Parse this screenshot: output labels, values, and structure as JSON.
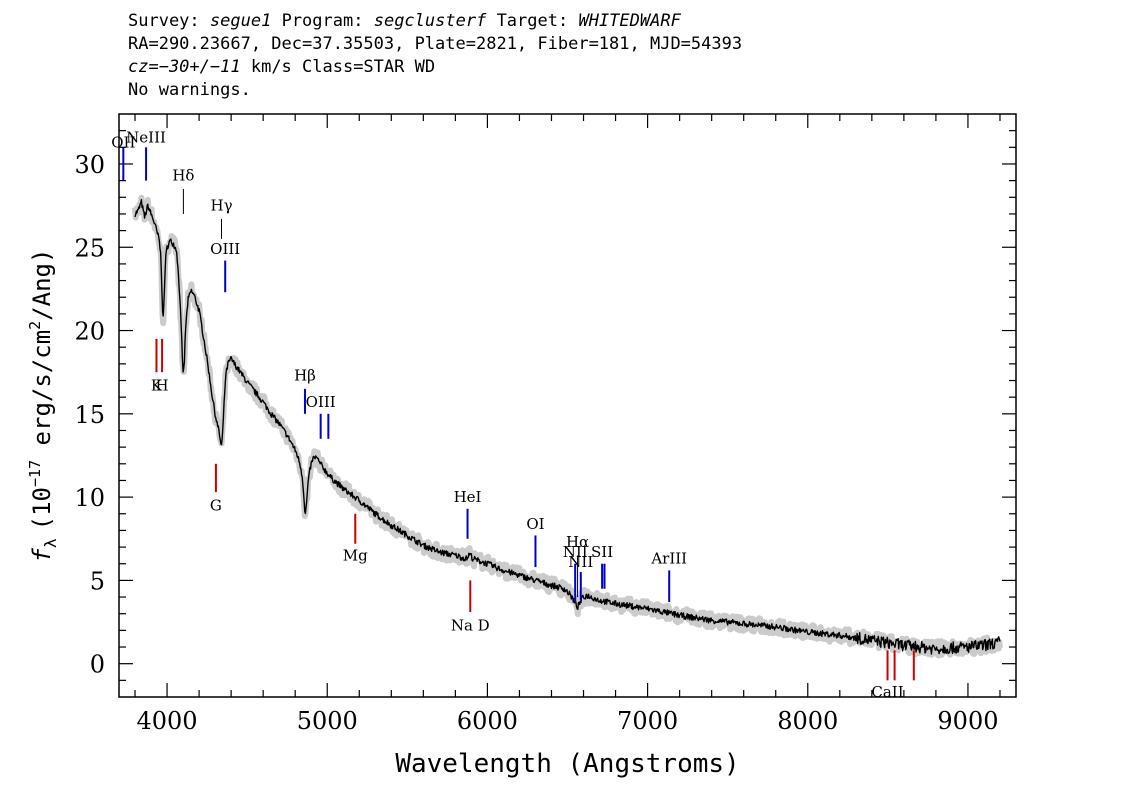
{
  "header": {
    "line1": {
      "survey_label": "Survey:",
      "survey": "segue1",
      "program_label": "Program:",
      "program": "segclusterf",
      "target_label": "Target:",
      "target": "WHITEDWARF"
    },
    "line2": "RA=290.23667, Dec=37.35503, Plate=2821, Fiber=181, MJD=54393",
    "line3": {
      "cz": "cz=−30+/−11",
      "unit": "km/s Class=STAR WD"
    },
    "line4": "No warnings."
  },
  "colors": {
    "spectrum": "#000000",
    "error": "#a0a0a0",
    "emission": "#0000cc",
    "absorption": "#cc0000",
    "sky": "#000000"
  },
  "chart_data": {
    "type": "line",
    "xlabel": "Wavelength (Angstroms)",
    "ylabel": "f_λ (10^-17 erg/s/cm^2/Ang)",
    "ylabel_parts": {
      "f": "f",
      "sub": "λ",
      "pre": "(10",
      "exp": "−17",
      "mid": " erg/s/cm",
      "exp2": "2",
      "post": "/Ang)"
    },
    "xlim": [
      3700,
      9300
    ],
    "ylim": [
      -2,
      33
    ],
    "xticks": [
      4000,
      5000,
      6000,
      7000,
      8000,
      9000
    ],
    "yticks": [
      0,
      5,
      10,
      15,
      20,
      25,
      30
    ],
    "grid": false,
    "series": [
      {
        "x": [
          3800,
          3820,
          3840,
          3860,
          3880,
          3900,
          3920,
          3940,
          3950,
          3960,
          3966,
          3970,
          3975,
          3980,
          3990,
          4000,
          4020,
          4040,
          4060,
          4070,
          4080,
          4090,
          4096,
          4102,
          4108,
          4115,
          4130,
          4150,
          4170,
          4200,
          4230,
          4260,
          4280,
          4300,
          4315,
          4325,
          4333,
          4338,
          4342,
          4348,
          4355,
          4365,
          4380,
          4400,
          4420,
          4450,
          4500,
          4550,
          4600,
          4650,
          4700,
          4750,
          4780,
          4810,
          4830,
          4845,
          4855,
          4862,
          4870,
          4880,
          4895,
          4910,
          4930,
          4950,
          4980,
          5020,
          5100,
          5200,
          5300,
          5400,
          5500,
          5600,
          5700,
          5800,
          5870,
          5890,
          5910,
          6000,
          6100,
          6200,
          6300,
          6400,
          6480,
          6520,
          6545,
          6555,
          6563,
          6575,
          6590,
          6620,
          6700,
          6800,
          7000,
          7200,
          7400,
          7600,
          7800,
          8000,
          8200,
          8400,
          8600,
          8800,
          9000,
          9100,
          9200
        ],
        "y": [
          27.0,
          27.2,
          27.7,
          26.8,
          27.5,
          27.0,
          26.5,
          25.8,
          25.5,
          24.6,
          23.3,
          21.8,
          20.5,
          21.5,
          24.2,
          25.0,
          25.4,
          25.2,
          24.8,
          23.5,
          22.0,
          19.8,
          18.2,
          17.3,
          18.2,
          20.0,
          21.8,
          22.4,
          22.1,
          21.2,
          19.5,
          17.6,
          16.2,
          15.0,
          14.3,
          13.9,
          13.4,
          13.0,
          13.2,
          14.0,
          15.4,
          17.2,
          18.0,
          18.3,
          18.0,
          17.6,
          16.9,
          16.3,
          15.7,
          15.0,
          14.4,
          13.7,
          13.2,
          12.6,
          12.0,
          11.2,
          10.0,
          8.8,
          9.5,
          10.8,
          11.8,
          12.3,
          12.4,
          12.1,
          11.7,
          11.2,
          10.5,
          9.8,
          9.0,
          8.3,
          7.7,
          7.1,
          6.7,
          6.5,
          6.3,
          6.6,
          6.3,
          6.0,
          5.6,
          5.3,
          5.0,
          4.7,
          4.5,
          4.1,
          3.7,
          3.5,
          3.4,
          3.6,
          3.9,
          4.1,
          3.8,
          3.6,
          3.3,
          2.9,
          2.6,
          2.4,
          2.2,
          1.9,
          1.7,
          1.4,
          1.1,
          0.9,
          1.0,
          1.1,
          1.3
        ],
        "error": 0.3
      }
    ],
    "lines": [
      {
        "label": "OII",
        "wave": 3727,
        "type": "emission",
        "y1": 29.0,
        "y2": 31.0,
        "label_y": 31.0
      },
      {
        "label": "NeIII",
        "wave": 3869,
        "type": "emission",
        "y1": 29.0,
        "y2": 31.0,
        "label_y": 31.3
      },
      {
        "label": "Hδ",
        "wave": 4102,
        "type": "sky",
        "y1": 27.0,
        "y2": 28.5,
        "label_y": 29.0
      },
      {
        "label": "Hγ",
        "wave": 4340,
        "type": "sky",
        "y1": 25.5,
        "y2": 26.7,
        "label_y": 27.2
      },
      {
        "label": "OIII",
        "wave": 4363,
        "type": "emission",
        "y1": 22.3,
        "y2": 24.2,
        "label_y": 24.6
      },
      {
        "label": "K",
        "wave": 3934,
        "type": "absorption",
        "y1": 17.5,
        "y2": 19.5,
        "label_y": 16.4
      },
      {
        "label": "H",
        "wave": 3969,
        "type": "absorption",
        "y1": 17.5,
        "y2": 19.5,
        "label_y": 16.4
      },
      {
        "label": "Hβ",
        "wave": 4861,
        "type": "emission",
        "y1": 15.0,
        "y2": 16.5,
        "label_y": 17.0
      },
      {
        "label": "OIII",
        "wave": 4959,
        "type": "emission",
        "y1": 13.5,
        "y2": 15.0,
        "label_y": 15.4
      },
      {
        "label": "",
        "wave": 5007,
        "type": "emission",
        "y1": 13.5,
        "y2": 15.0,
        "label_y": 15.4
      },
      {
        "label": "G",
        "wave": 4305,
        "type": "absorption",
        "y1": 10.3,
        "y2": 12.0,
        "label_y": 9.2
      },
      {
        "label": "Mg",
        "wave": 5175,
        "type": "absorption",
        "y1": 7.2,
        "y2": 9.0,
        "label_y": 6.2
      },
      {
        "label": "HeI",
        "wave": 5876,
        "type": "emission",
        "y1": 7.5,
        "y2": 9.3,
        "label_y": 9.7
      },
      {
        "label": "Na D",
        "wave": 5893,
        "type": "absorption",
        "y1": 3.1,
        "y2": 5.0,
        "label_y": 2.0
      },
      {
        "label": "OI",
        "wave": 6300,
        "type": "emission",
        "y1": 5.8,
        "y2": 7.7,
        "label_y": 8.1
      },
      {
        "label": "NII",
        "wave": 6548,
        "type": "emission",
        "y1": 3.7,
        "y2": 6.0,
        "label_y": 6.4
      },
      {
        "label": "Hα",
        "wave": 6563,
        "type": "sky",
        "y1": 4.0,
        "y2": 6.5,
        "label_y": 7.0
      },
      {
        "label": "NII",
        "wave": 6583,
        "type": "emission",
        "y1": 3.8,
        "y2": 5.5,
        "label_y": 5.8
      },
      {
        "label": "SII",
        "wave": 6716,
        "type": "emission",
        "y1": 4.5,
        "y2": 6.0,
        "label_y": 6.4
      },
      {
        "label": "",
        "wave": 6731,
        "type": "emission",
        "y1": 4.5,
        "y2": 6.0,
        "label_y": 6.4
      },
      {
        "label": "ArIII",
        "wave": 7135,
        "type": "emission",
        "y1": 3.7,
        "y2": 5.6,
        "label_y": 6.0
      },
      {
        "label": "CaII",
        "wave": 8498,
        "type": "absorption",
        "y1": -1.0,
        "y2": 0.8,
        "label_y": -2.0
      },
      {
        "label": "",
        "wave": 8542,
        "type": "absorption",
        "y1": -1.0,
        "y2": 0.8,
        "label_y": -2.0
      },
      {
        "label": "",
        "wave": 8662,
        "type": "absorption",
        "y1": -1.0,
        "y2": 0.8,
        "label_y": -2.0
      }
    ]
  }
}
